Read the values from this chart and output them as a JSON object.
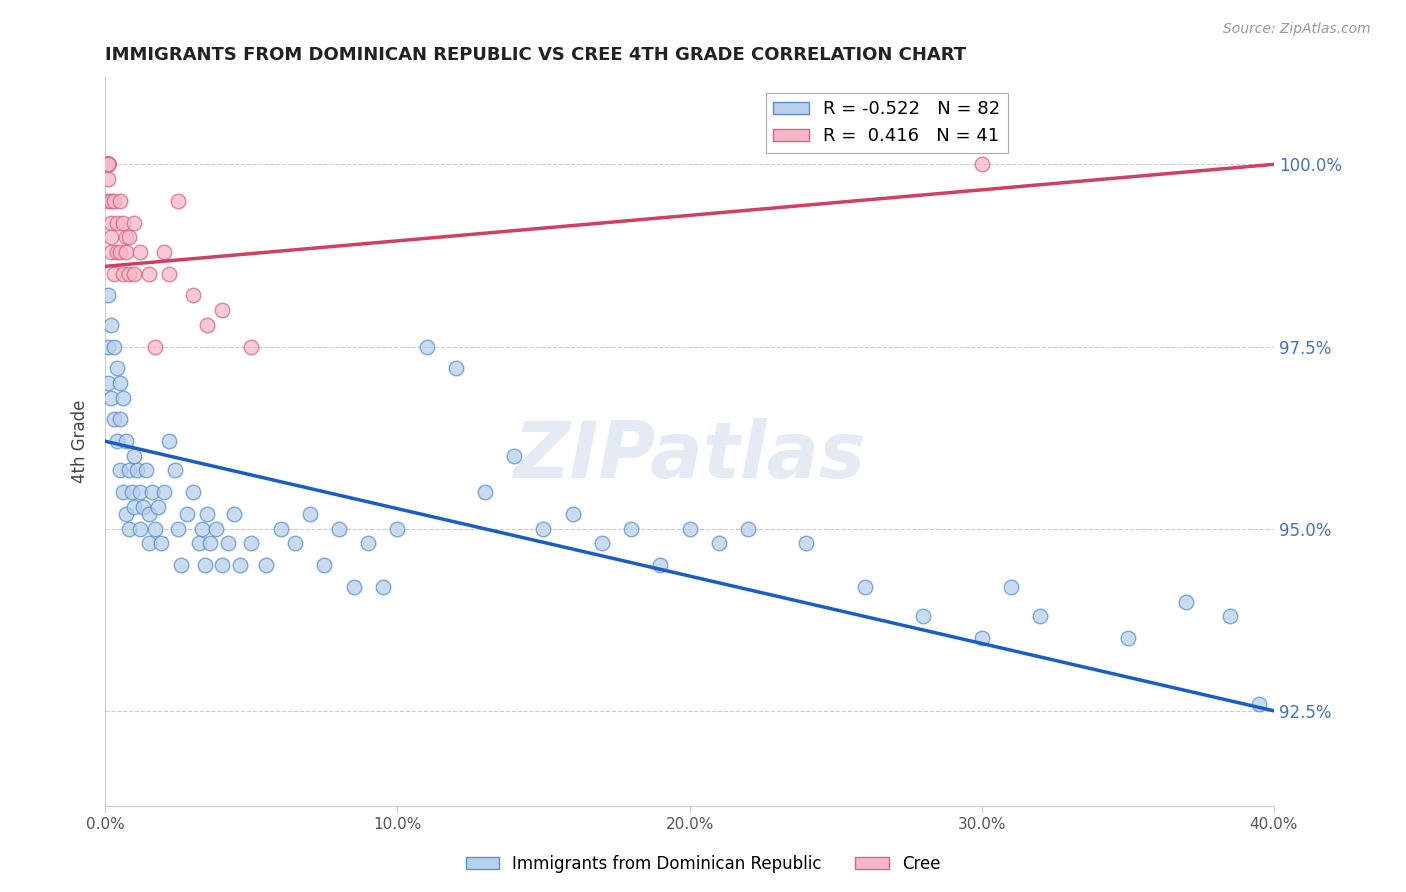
{
  "title": "IMMIGRANTS FROM DOMINICAN REPUBLIC VS CREE 4TH GRADE CORRELATION CHART",
  "source": "Source: ZipAtlas.com",
  "ylabel": "4th Grade",
  "watermark": "ZIPatlas",
  "xmin": 0.0,
  "xmax": 0.4,
  "ymin": 91.2,
  "ymax": 101.2,
  "yticks": [
    92.5,
    95.0,
    97.5,
    100.0
  ],
  "ytick_labels": [
    "92.5%",
    "95.0%",
    "97.5%",
    "100.0%"
  ],
  "xticks": [
    0.0,
    0.1,
    0.2,
    0.3,
    0.4
  ],
  "xtick_labels": [
    "0.0%",
    "10.0%",
    "20.0%",
    "30.0%",
    "40.0%"
  ],
  "blue_R": -0.522,
  "blue_N": 82,
  "pink_R": 0.416,
  "pink_N": 41,
  "blue_color": "#b8d0ea",
  "blue_edge_color": "#5b8fd4",
  "blue_line_color": "#1a5dc8",
  "pink_color": "#f5b8c8",
  "pink_edge_color": "#e06080",
  "pink_line_color": "#d04060",
  "blue_line_x0": 0.0,
  "blue_line_y0": 96.2,
  "blue_line_x1": 0.4,
  "blue_line_y1": 92.5,
  "pink_line_x0": 0.0,
  "pink_line_y0": 98.6,
  "pink_line_x1": 0.4,
  "pink_line_y1": 100.0,
  "blue_scatter_x": [
    0.001,
    0.001,
    0.001,
    0.002,
    0.002,
    0.003,
    0.003,
    0.004,
    0.004,
    0.005,
    0.005,
    0.005,
    0.006,
    0.006,
    0.007,
    0.007,
    0.008,
    0.008,
    0.009,
    0.01,
    0.01,
    0.011,
    0.012,
    0.012,
    0.013,
    0.014,
    0.015,
    0.015,
    0.016,
    0.017,
    0.018,
    0.019,
    0.02,
    0.022,
    0.024,
    0.025,
    0.026,
    0.028,
    0.03,
    0.032,
    0.033,
    0.034,
    0.035,
    0.036,
    0.038,
    0.04,
    0.042,
    0.044,
    0.046,
    0.05,
    0.055,
    0.06,
    0.065,
    0.07,
    0.075,
    0.08,
    0.085,
    0.09,
    0.095,
    0.1,
    0.11,
    0.12,
    0.13,
    0.14,
    0.15,
    0.16,
    0.17,
    0.18,
    0.19,
    0.2,
    0.21,
    0.22,
    0.24,
    0.26,
    0.28,
    0.3,
    0.31,
    0.32,
    0.35,
    0.37,
    0.385,
    0.395
  ],
  "blue_scatter_y": [
    98.2,
    97.5,
    97.0,
    97.8,
    96.8,
    97.5,
    96.5,
    97.2,
    96.2,
    97.0,
    96.5,
    95.8,
    96.8,
    95.5,
    96.2,
    95.2,
    95.8,
    95.0,
    95.5,
    96.0,
    95.3,
    95.8,
    95.5,
    95.0,
    95.3,
    95.8,
    95.2,
    94.8,
    95.5,
    95.0,
    95.3,
    94.8,
    95.5,
    96.2,
    95.8,
    95.0,
    94.5,
    95.2,
    95.5,
    94.8,
    95.0,
    94.5,
    95.2,
    94.8,
    95.0,
    94.5,
    94.8,
    95.2,
    94.5,
    94.8,
    94.5,
    95.0,
    94.8,
    95.2,
    94.5,
    95.0,
    94.2,
    94.8,
    94.2,
    95.0,
    97.5,
    97.2,
    95.5,
    96.0,
    95.0,
    95.2,
    94.8,
    95.0,
    94.5,
    95.0,
    94.8,
    95.0,
    94.8,
    94.2,
    93.8,
    93.5,
    94.2,
    93.8,
    93.5,
    94.0,
    93.8,
    92.6
  ],
  "pink_scatter_x": [
    0.001,
    0.001,
    0.001,
    0.001,
    0.001,
    0.001,
    0.001,
    0.001,
    0.001,
    0.001,
    0.001,
    0.001,
    0.002,
    0.002,
    0.002,
    0.002,
    0.003,
    0.003,
    0.004,
    0.004,
    0.005,
    0.005,
    0.006,
    0.006,
    0.007,
    0.007,
    0.008,
    0.008,
    0.01,
    0.01,
    0.012,
    0.015,
    0.017,
    0.02,
    0.022,
    0.025,
    0.03,
    0.035,
    0.04,
    0.05,
    0.3
  ],
  "pink_scatter_y": [
    100.0,
    100.0,
    100.0,
    100.0,
    100.0,
    100.0,
    100.0,
    100.0,
    100.0,
    100.0,
    99.8,
    99.5,
    99.5,
    99.2,
    98.8,
    99.0,
    99.5,
    98.5,
    99.2,
    98.8,
    99.5,
    98.8,
    99.2,
    98.5,
    98.8,
    99.0,
    98.5,
    99.0,
    99.2,
    98.5,
    98.8,
    98.5,
    97.5,
    98.8,
    98.5,
    99.5,
    98.2,
    97.8,
    98.0,
    97.5,
    100.0
  ],
  "legend_blue_label": "Immigrants from Dominican Republic",
  "legend_pink_label": "Cree"
}
